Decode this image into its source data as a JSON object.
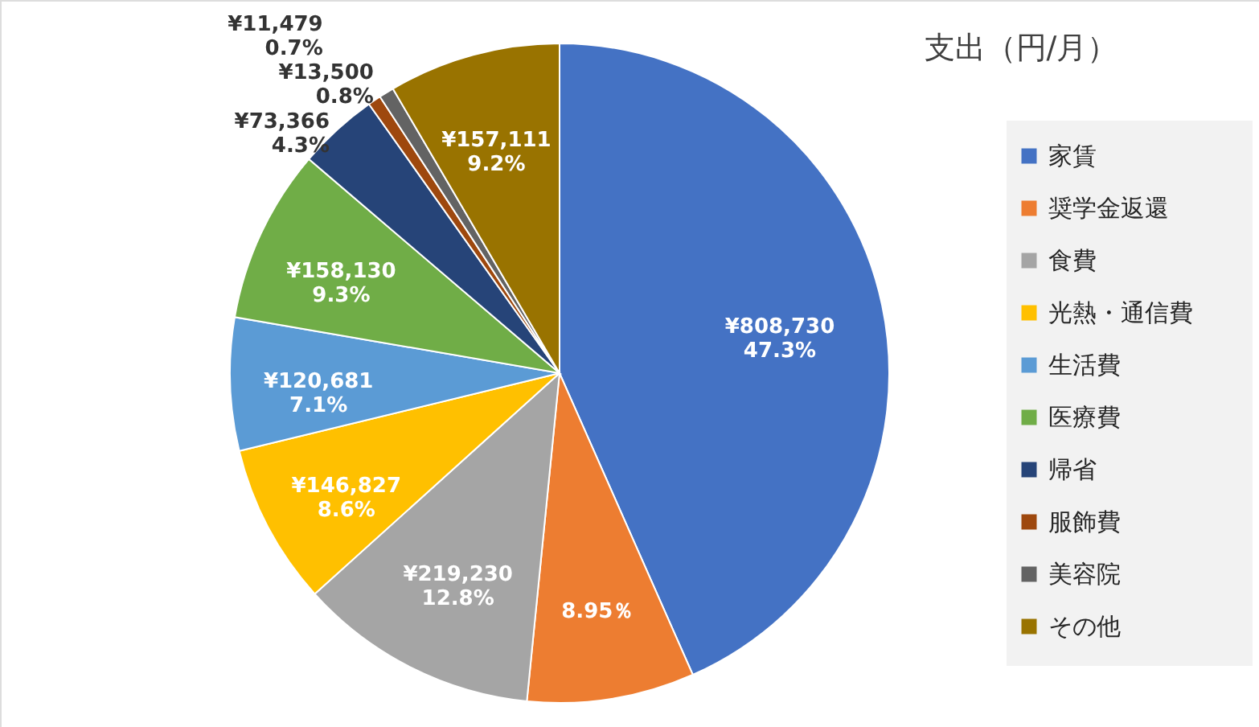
{
  "chart_data": {
    "type": "pie",
    "title": "支出（円/月）",
    "categories": [
      "家賃",
      "奨学金返還",
      "食費",
      "光熱・通信費",
      "生活費",
      "医療費",
      "帰省",
      "服飾費",
      "美容院",
      "その他"
    ],
    "values": [
      47.3,
      8.95,
      12.8,
      8.6,
      7.1,
      9.3,
      4.3,
      0.7,
      0.8,
      9.2
    ],
    "value_labels": [
      "¥808,730\n47.3%",
      "8.95％",
      "¥219,230\n12.8%",
      "¥146,827\n8.6%",
      "¥120,681\n7.1%",
      "¥158,130\n9.3%",
      "¥73,366\n4.3%",
      "¥11,479\n0.7%",
      "¥13,500\n0.8%",
      "¥157,111\n9.2%"
    ],
    "colors": [
      "#4472c4",
      "#ed7d31",
      "#a5a5a5",
      "#ffc000",
      "#5b9bd5",
      "#70ad47",
      "#264478",
      "#9e480e",
      "#636363",
      "#997300"
    ],
    "legend": "right"
  }
}
